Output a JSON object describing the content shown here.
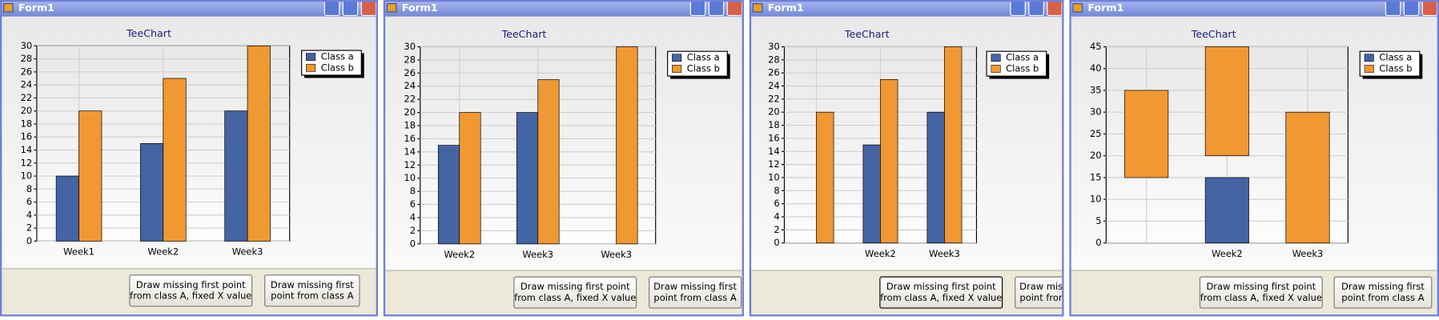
{
  "windows": [
    {
      "title": "Form1",
      "chart_data": {
        "type": "bar",
        "title": "TeeChart",
        "categories": [
          "Week1",
          "Week2",
          "Week3"
        ],
        "series": [
          {
            "name": "Class a",
            "color": "#4464a4",
            "values": [
              10,
              15,
              20
            ]
          },
          {
            "name": "Class b",
            "color": "#f09832",
            "values": [
              20,
              25,
              30
            ]
          }
        ],
        "ylim": [
          0,
          30
        ],
        "yticks": [
          0,
          2,
          4,
          6,
          8,
          10,
          12,
          14,
          16,
          18,
          20,
          22,
          24,
          26,
          28,
          30
        ],
        "grid": true
      },
      "buttons": [
        [
          "Draw missing first point",
          "from class A, fixed X value"
        ],
        [
          "Draw missing first",
          "point from class A"
        ]
      ]
    },
    {
      "title": "Form1",
      "chart_data": {
        "type": "bar",
        "title": "TeeChart",
        "categories": [
          "Week2",
          "Week3",
          "Week3"
        ],
        "series": [
          {
            "name": "Class a",
            "color": "#4464a4",
            "values": [
              15,
              20,
              null
            ]
          },
          {
            "name": "Class b",
            "color": "#f09832",
            "values": [
              20,
              25,
              30
            ]
          }
        ],
        "ylim": [
          0,
          30
        ],
        "yticks": [
          0,
          2,
          4,
          6,
          8,
          10,
          12,
          14,
          16,
          18,
          20,
          22,
          24,
          26,
          28,
          30
        ],
        "grid": true
      },
      "buttons": [
        [
          "Draw missing first point",
          "from class A, fixed X value"
        ],
        [
          "Draw missing first",
          "point from class A"
        ]
      ]
    },
    {
      "title": "Form1",
      "chart_data": {
        "type": "bar",
        "title": "TeeChart",
        "categories": [
          null,
          "Week2",
          "Week3"
        ],
        "series": [
          {
            "name": "Class a",
            "color": "#4464a4",
            "values": [
              null,
              15,
              20
            ]
          },
          {
            "name": "Class b",
            "color": "#f09832",
            "values": [
              20,
              25,
              30
            ]
          }
        ],
        "ylim": [
          0,
          30
        ],
        "yticks": [
          0,
          2,
          4,
          6,
          8,
          10,
          12,
          14,
          16,
          18,
          20,
          22,
          24,
          26,
          28,
          30
        ],
        "grid": true
      },
      "buttons": [
        [
          "Draw missing first point",
          "from class A, fixed X value"
        ],
        [
          "Draw missing first",
          "point from class A"
        ]
      ]
    },
    {
      "title": "Form1",
      "chart_data": {
        "type": "floating-bar",
        "title": "TeeChart",
        "categories": [
          null,
          "Week2",
          "Week3"
        ],
        "series": [
          {
            "name": "Class a",
            "color": "#4464a4",
            "low": [
              null,
              0,
              null
            ],
            "high": [
              null,
              15,
              null
            ]
          },
          {
            "name": "Class b",
            "color": "#f09832",
            "low": [
              15,
              20,
              0
            ],
            "high": [
              35,
              45,
              30
            ]
          }
        ],
        "ylim": [
          0,
          45
        ],
        "yticks": [
          0,
          5,
          10,
          15,
          20,
          25,
          30,
          35,
          40,
          45
        ],
        "grid": true
      },
      "buttons": [
        [
          "Draw missing first point",
          "from class A, fixed X value"
        ],
        [
          "Draw missing first",
          "point from class A"
        ]
      ]
    }
  ]
}
